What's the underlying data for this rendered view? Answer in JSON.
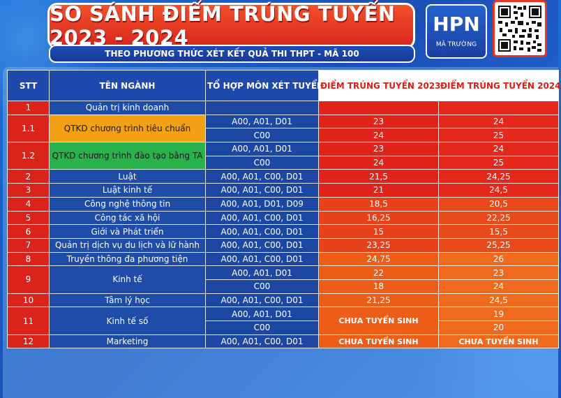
{
  "header": {
    "title": "SO SÁNH ĐIỂM TRÚNG TUYỂN 2023 - 2024",
    "subtitle": "THEO PHƯƠNG THỨC XÉT KẾT QUẢ THI THPT - MÃ 100",
    "school_logo": "HPN",
    "school_code_label": "MÃ TRƯỜNG"
  },
  "colors": {
    "title_red": "#e22319",
    "table_blue": "#1e49ad",
    "orange": "#f2a114",
    "green": "#28b24a"
  },
  "table": {
    "headers": [
      "STT",
      "TÊN NGÀNH",
      "TỔ HỢP MÔN XÉT TUYỂN",
      "ĐIỂM TRÚNG TUYỂN 2023",
      "ĐIỂM TRÚNG TUYỂN 2024"
    ],
    "rows": [
      {
        "stt": "1",
        "name": "Quản trị kinh doanh",
        "lines": [
          {
            "combo": "",
            "s2023": "",
            "s2024": ""
          }
        ]
      },
      {
        "stt": "1.1",
        "name": "QTKD chương trình tiêu chuẩn",
        "lines": [
          {
            "combo": "A00, A01, D01",
            "s2023": "23",
            "s2024": "24"
          },
          {
            "combo": "C00",
            "s2023": "24",
            "s2024": "25"
          }
        ]
      },
      {
        "stt": "1.2",
        "name": "QTKD chương trình đào tạo bằng TA",
        "lines": [
          {
            "combo": "A00, A01, D01",
            "s2023": "23",
            "s2024": "24"
          },
          {
            "combo": "C00",
            "s2023": "24",
            "s2024": "25"
          }
        ]
      },
      {
        "stt": "2",
        "name": "Luật",
        "lines": [
          {
            "combo": "A00, A01, C00, D01",
            "s2023": "21,5",
            "s2024": "24,25"
          }
        ]
      },
      {
        "stt": "3",
        "name": "Luật kinh tế",
        "lines": [
          {
            "combo": "A00, A01, C00, D01",
            "s2023": "21",
            "s2024": "24,5"
          }
        ]
      },
      {
        "stt": "4",
        "name": "Công nghệ thông tin",
        "lines": [
          {
            "combo": "A00, A01, D01, D09",
            "s2023": "18,5",
            "s2024": "20,5"
          }
        ]
      },
      {
        "stt": "5",
        "name": "Công tác xã hội",
        "lines": [
          {
            "combo": "A00, A01, C00, D01",
            "s2023": "16,25",
            "s2024": "22,25"
          }
        ]
      },
      {
        "stt": "6",
        "name": "Giới và Phát triển",
        "lines": [
          {
            "combo": "A00, A01, C00, D01",
            "s2023": "15",
            "s2024": "15,5"
          }
        ]
      },
      {
        "stt": "7",
        "name": "Quản trị dịch vụ du lịch và lữ hành",
        "lines": [
          {
            "combo": "A00, A01, C00, D01",
            "s2023": "23,25",
            "s2024": "25,25"
          }
        ]
      },
      {
        "stt": "8",
        "name": "Truyền thông đa phương tiện",
        "lines": [
          {
            "combo": "A00, A01, C00, D01",
            "s2023": "24,75",
            "s2024": "26"
          }
        ]
      },
      {
        "stt": "9",
        "name": "Kinh tế",
        "lines": [
          {
            "combo": "A00, A01, D01",
            "s2023": "22",
            "s2024": "23"
          },
          {
            "combo": "C00",
            "s2023": "18",
            "s2024": "24"
          }
        ]
      },
      {
        "stt": "10",
        "name": "Tâm lý học",
        "lines": [
          {
            "combo": "A00, A01, C00, D01",
            "s2023": "21,25",
            "s2024": "24,5"
          }
        ]
      },
      {
        "stt": "11",
        "name": "Kinh tế số",
        "lines": [
          {
            "combo": "A00, A01, D01",
            "s2023": "CHƯA TUYỂN SINH",
            "s2024": "19"
          },
          {
            "combo": "C00",
            "s2023": "",
            "s2024": "20"
          }
        ]
      },
      {
        "stt": "12",
        "name": "Marketing",
        "lines": [
          {
            "combo": "A00, A01, C00, D01",
            "s2023": "CHƯA TUYỂN SINH",
            "s2024": "CHƯA TUYỂN SINH"
          }
        ]
      }
    ]
  }
}
